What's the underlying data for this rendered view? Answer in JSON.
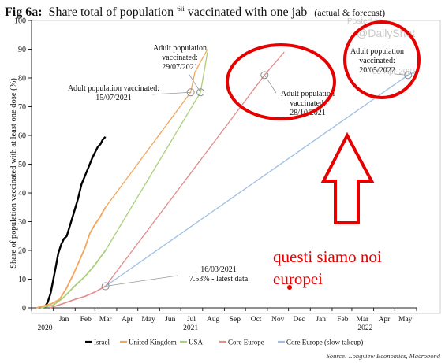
{
  "figure": {
    "fig_label": "Fig 6a:",
    "title_pre": "Share total of population",
    "title_sup": "6ii",
    "title_post": " vaccinated with one jab",
    "title_note": "(actual & forecast)",
    "watermark_top": "Posted on",
    "watermark_main": "@DailyShot",
    "watermark_date": "05-Apr-2021",
    "source": "Source: Longview Economics, Macrobond"
  },
  "colors": {
    "israel": "#000000",
    "uk": "#f4a65c",
    "usa": "#a9cf7a",
    "core_europe": "#e68a8a",
    "core_europe_slow": "#9dbfe3",
    "red_accent": "#e60000",
    "axis": "#222222"
  },
  "chart_data": {
    "type": "line",
    "ylabel": "Share of population vaccinated with at least one dose (%)",
    "xlabel": "",
    "ylim": [
      0,
      100
    ],
    "yticks": [
      0,
      10,
      20,
      30,
      40,
      50,
      60,
      70,
      80,
      90,
      100
    ],
    "xlim": [
      "2020-12-01",
      "2022-06-01"
    ],
    "xtick_labels": [
      "Jan",
      "Feb",
      "Mar",
      "Apr",
      "May",
      "Jun",
      "Jul",
      "Aug",
      "Sep",
      "Oct",
      "Nov",
      "Dec",
      "Jan",
      "Feb",
      "Mar",
      "Apr",
      "May"
    ],
    "year_labels": [
      "2020",
      "2021",
      "2022"
    ],
    "grid": false,
    "legend_position": "bottom",
    "series": [
      {
        "name": "Israel",
        "key": "israel",
        "x": [
          "2020-12-19",
          "2020-12-24",
          "2020-12-28",
          "2021-01-01",
          "2021-01-05",
          "2021-01-08",
          "2021-01-12",
          "2021-01-16",
          "2021-01-20",
          "2021-01-25",
          "2021-01-30",
          "2021-02-05",
          "2021-02-10",
          "2021-02-15",
          "2021-02-20",
          "2021-02-25",
          "2021-03-01",
          "2021-03-05",
          "2021-03-09",
          "2021-03-12",
          "2021-03-16"
        ],
        "y": [
          0,
          2,
          5,
          10,
          15,
          19,
          22,
          24,
          25,
          29,
          33,
          38,
          43,
          46,
          49,
          52,
          54,
          56,
          57,
          58.5,
          59.5
        ]
      },
      {
        "name": "United Kingdom",
        "key": "uk",
        "x": [
          "2020-12-08",
          "2020-12-30",
          "2021-01-10",
          "2021-01-20",
          "2021-01-30",
          "2021-02-08",
          "2021-02-15",
          "2021-02-22",
          "2021-03-01",
          "2021-03-08",
          "2021-03-16",
          "2021-07-15",
          "2021-07-21",
          "2021-08-08"
        ],
        "y": [
          0,
          1.5,
          3,
          7,
          12,
          17,
          21,
          26,
          29,
          31.5,
          35,
          75,
          82,
          90
        ]
      },
      {
        "name": "USA",
        "key": "usa",
        "x": [
          "2020-12-14",
          "2021-01-01",
          "2021-01-15",
          "2021-01-31",
          "2021-02-15",
          "2021-03-01",
          "2021-03-16",
          "2021-07-29",
          "2021-08-08"
        ],
        "y": [
          0,
          1,
          3.5,
          7.5,
          11,
          15,
          20,
          75,
          89
        ]
      },
      {
        "name": "Core Europe",
        "key": "core_europe",
        "x": [
          "2020-12-27",
          "2021-01-15",
          "2021-02-01",
          "2021-02-15",
          "2021-03-01",
          "2021-03-16",
          "2021-10-28",
          "2021-11-25"
        ],
        "y": [
          0,
          1.5,
          3,
          4,
          5.5,
          7.53,
          81,
          89
        ]
      },
      {
        "name": "Core Europe (slow takeup)",
        "key": "core_europe_slow",
        "x": [
          "2021-03-16",
          "2022-05-20",
          "2022-06-01"
        ],
        "y": [
          7.53,
          81,
          82.5
        ]
      }
    ],
    "annotations": [
      {
        "lines": [
          "Adult population vaccinated:",
          "15/07/2021"
        ],
        "x": "2021-07-15",
        "y": 75
      },
      {
        "lines": [
          "Adult population",
          "vaccinated:",
          "29/07/2021"
        ],
        "x": "2021-07-29",
        "y": 75
      },
      {
        "lines": [
          "Adult population",
          "vaccinated:",
          "28/10/2021"
        ],
        "x": "2021-10-28",
        "y": 81
      },
      {
        "lines": [
          "Adult population",
          "vaccinated:",
          "20/05/2022"
        ],
        "x": "2022-05-20",
        "y": 81
      },
      {
        "lines": [
          "16/03/2021",
          "7.53% - latest data"
        ],
        "x": "2021-03-16",
        "y": 7.53
      }
    ]
  },
  "handwritten": {
    "note_line1": "questi siamo noi",
    "note_line2": "europei"
  }
}
